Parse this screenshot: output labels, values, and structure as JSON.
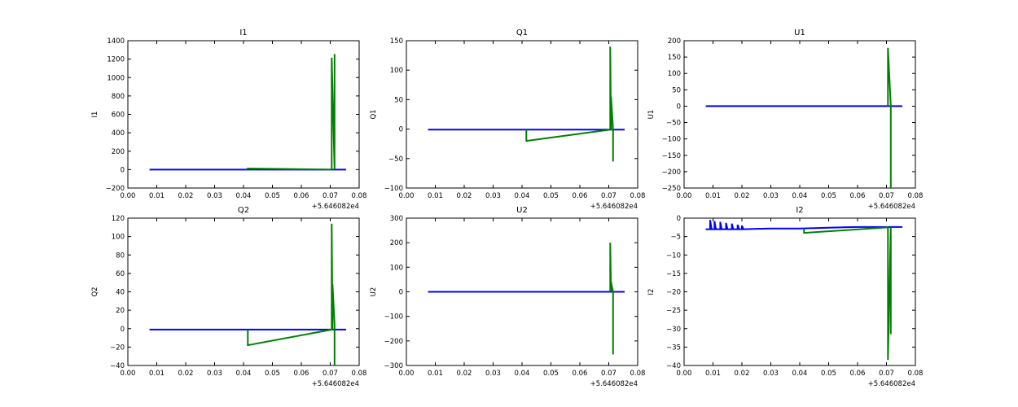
{
  "figure": {
    "x_offset_label": "+5.646082e4",
    "colors": {
      "series_blue": "#0000ff",
      "series_green": "#008000",
      "axes": "#000000",
      "background": "#ffffff"
    }
  },
  "chart_data": [
    {
      "type": "line",
      "title": "I1",
      "ylabel": "I1",
      "xlabel": "",
      "xlim": [
        0.0,
        0.08
      ],
      "ylim": [
        -200,
        1400
      ],
      "xticks": [
        "0.00",
        "0.01",
        "0.02",
        "0.03",
        "0.04",
        "0.05",
        "0.06",
        "0.07",
        "0.08"
      ],
      "yticks": [
        "−200",
        "0",
        "200",
        "400",
        "600",
        "800",
        "1000",
        "1200",
        "1400"
      ],
      "x_offset": "+5.646082e4",
      "series": [
        {
          "color": "#0000ff",
          "x": [
            0.0075,
            0.0755
          ],
          "y": [
            0,
            0
          ]
        },
        {
          "color": "#008000",
          "x": [
            0.0415,
            0.0415,
            0.0705,
            0.0705,
            0.0715,
            0.0715
          ],
          "y": [
            0,
            12,
            0,
            1215,
            0,
            1255
          ]
        }
      ]
    },
    {
      "type": "line",
      "title": "Q1",
      "ylabel": "Q1",
      "xlabel": "",
      "xlim": [
        0.0,
        0.08
      ],
      "ylim": [
        -100,
        150
      ],
      "xticks": [
        "0.00",
        "0.01",
        "0.02",
        "0.03",
        "0.04",
        "0.05",
        "0.06",
        "0.07",
        "0.08"
      ],
      "yticks": [
        "−100",
        "−50",
        "0",
        "50",
        "100",
        "150"
      ],
      "x_offset": "+5.646082e4",
      "series": [
        {
          "color": "#0000ff",
          "x": [
            0.0075,
            0.0755
          ],
          "y": [
            -1,
            -1
          ]
        },
        {
          "color": "#008000",
          "x": [
            0.0415,
            0.0415,
            0.0705,
            0.0705,
            0.0708,
            0.0708,
            0.0715,
            0.0715
          ],
          "y": [
            -1,
            -20,
            -1,
            140,
            -1,
            55,
            -1,
            -55
          ]
        }
      ]
    },
    {
      "type": "line",
      "title": "U1",
      "ylabel": "U1",
      "xlabel": "",
      "xlim": [
        0.0,
        0.08
      ],
      "ylim": [
        -250,
        200
      ],
      "xticks": [
        "0.00",
        "0.01",
        "0.02",
        "0.03",
        "0.04",
        "0.05",
        "0.06",
        "0.07",
        "0.08"
      ],
      "yticks": [
        "−250",
        "−200",
        "−150",
        "−100",
        "−50",
        "0",
        "50",
        "100",
        "150",
        "200"
      ],
      "x_offset": "+5.646082e4",
      "series": [
        {
          "color": "#0000ff",
          "x": [
            0.0075,
            0.0755
          ],
          "y": [
            0,
            0
          ]
        },
        {
          "color": "#008000",
          "x": [
            0.0705,
            0.0705,
            0.0715,
            0.0715
          ],
          "y": [
            0,
            178,
            0,
            -248
          ]
        }
      ]
    },
    {
      "type": "line",
      "title": "Q2",
      "ylabel": "Q2",
      "xlabel": "",
      "xlim": [
        0.0,
        0.08
      ],
      "ylim": [
        -40,
        120
      ],
      "xticks": [
        "0.00",
        "0.01",
        "0.02",
        "0.03",
        "0.04",
        "0.05",
        "0.06",
        "0.07",
        "0.08"
      ],
      "yticks": [
        "−40",
        "−20",
        "0",
        "20",
        "40",
        "60",
        "80",
        "100",
        "120"
      ],
      "x_offset": "+5.646082e4",
      "series": [
        {
          "color": "#0000ff",
          "x": [
            0.0075,
            0.0755
          ],
          "y": [
            -1,
            -1
          ]
        },
        {
          "color": "#008000",
          "x": [
            0.0415,
            0.0415,
            0.0705,
            0.0705,
            0.0708,
            0.0708,
            0.0715,
            0.0715
          ],
          "y": [
            -1,
            -18,
            -1,
            114,
            -1,
            48,
            5,
            -40
          ]
        }
      ]
    },
    {
      "type": "line",
      "title": "U2",
      "ylabel": "U2",
      "xlabel": "",
      "xlim": [
        0.0,
        0.08
      ],
      "ylim": [
        -300,
        300
      ],
      "xticks": [
        "0.00",
        "0.01",
        "0.02",
        "0.03",
        "0.04",
        "0.05",
        "0.06",
        "0.07",
        "0.08"
      ],
      "yticks": [
        "−300",
        "−200",
        "−100",
        "0",
        "100",
        "200",
        "300"
      ],
      "x_offset": "+5.646082e4",
      "series": [
        {
          "color": "#0000ff",
          "x": [
            0.0075,
            0.0755
          ],
          "y": [
            0,
            0
          ]
        },
        {
          "color": "#008000",
          "x": [
            0.0705,
            0.0705,
            0.0708,
            0.0708,
            0.0715,
            0.0715
          ],
          "y": [
            0,
            200,
            0,
            40,
            0,
            -255
          ]
        }
      ]
    },
    {
      "type": "line",
      "title": "I2",
      "ylabel": "I2",
      "xlabel": "",
      "xlim": [
        0.0,
        0.08
      ],
      "ylim": [
        -40,
        0
      ],
      "xticks": [
        "0.00",
        "0.01",
        "0.02",
        "0.03",
        "0.04",
        "0.05",
        "0.06",
        "0.07",
        "0.08"
      ],
      "yticks": [
        "−40",
        "−35",
        "−30",
        "−25",
        "−20",
        "−15",
        "−10",
        "−5",
        "0"
      ],
      "x_offset": "+5.646082e4",
      "series": [
        {
          "color": "#0000ff",
          "x": [
            0.0075,
            0.009,
            0.009,
            0.0095,
            0.0105,
            0.0105,
            0.011,
            0.0125,
            0.0125,
            0.013,
            0.0145,
            0.0145,
            0.015,
            0.0165,
            0.0165,
            0.017,
            0.0185,
            0.0185,
            0.019,
            0.02,
            0.02,
            0.0205,
            0.025,
            0.03,
            0.035,
            0.04,
            0.045,
            0.05,
            0.055,
            0.06,
            0.065,
            0.07,
            0.0755
          ],
          "y": [
            -3,
            -3,
            -0.5,
            -3,
            -3,
            -0.8,
            -3,
            -3,
            -1.0,
            -3,
            -3,
            -1.3,
            -3,
            -3,
            -1.5,
            -3,
            -3,
            -1.8,
            -3,
            -3,
            -2.0,
            -3,
            -2.9,
            -2.8,
            -2.8,
            -2.8,
            -2.7,
            -2.6,
            -2.5,
            -2.4,
            -2.4,
            -2.4,
            -2.4
          ]
        },
        {
          "color": "#008000",
          "x": [
            0.0415,
            0.0415,
            0.0705,
            0.0705,
            0.0715,
            0.0715
          ],
          "y": [
            -2.8,
            -4,
            -2.5,
            -38.5,
            -2.5,
            -31.5
          ]
        }
      ]
    }
  ]
}
